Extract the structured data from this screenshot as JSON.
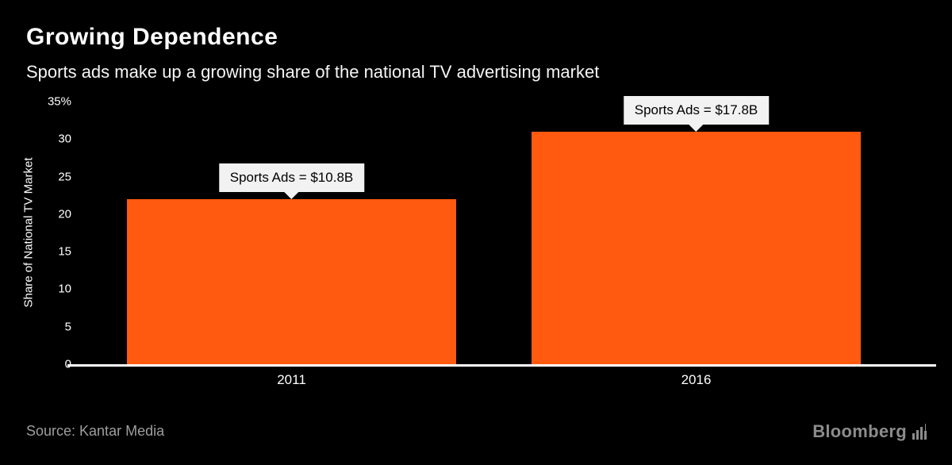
{
  "header": {
    "title": "Growing Dependence",
    "subtitle": "Sports ads make up a growing share of the national TV advertising market"
  },
  "chart_data": {
    "type": "bar",
    "categories": [
      "2011",
      "2016"
    ],
    "values": [
      22,
      31
    ],
    "annotations": [
      "Sports Ads = $10.8B",
      "Sports Ads = $17.8B"
    ],
    "title": "Growing Dependence",
    "xlabel": "",
    "ylabel": "Share of National TV Market",
    "ylim": [
      0,
      35
    ],
    "yticks": [
      0,
      5,
      10,
      15,
      20,
      25,
      30,
      35
    ],
    "ytick_labels": [
      "0",
      "5",
      "10",
      "15",
      "20",
      "25",
      "30",
      "35%"
    ],
    "grid": false,
    "legend": false,
    "bar_color": "#ff5a0f",
    "background_color": "#000000"
  },
  "footer": {
    "source": "Source: Kantar Media",
    "brand": "Bloomberg"
  }
}
